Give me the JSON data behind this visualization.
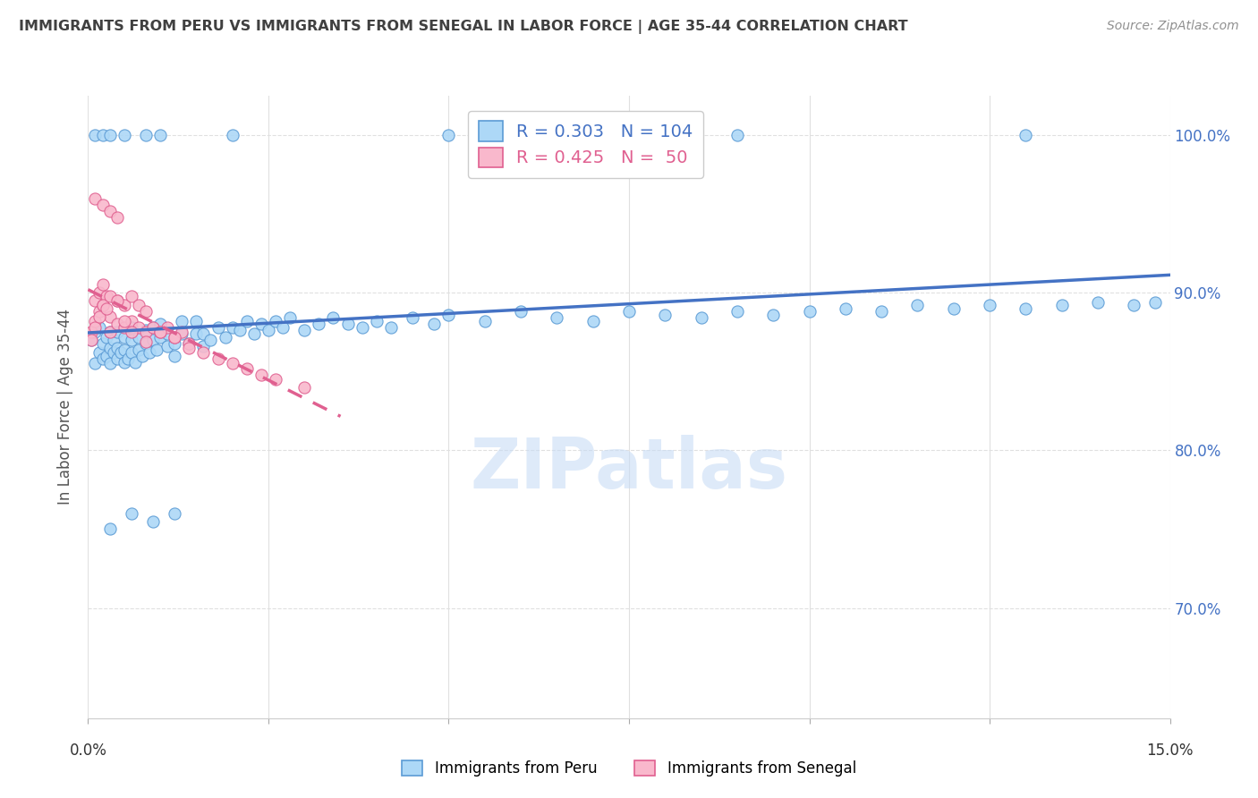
{
  "title": "IMMIGRANTS FROM PERU VS IMMIGRANTS FROM SENEGAL IN LABOR FORCE | AGE 35-44 CORRELATION CHART",
  "source": "Source: ZipAtlas.com",
  "ylabel": "In Labor Force | Age 35-44",
  "xmin": 0.0,
  "xmax": 0.15,
  "ymin": 0.63,
  "ymax": 1.025,
  "peru_R": 0.303,
  "peru_N": 104,
  "senegal_R": 0.425,
  "senegal_N": 50,
  "peru_color": "#ADD8F7",
  "senegal_color": "#F9B8CC",
  "peru_edge_color": "#5B9BD5",
  "senegal_edge_color": "#E06090",
  "peru_line_color": "#4472C4",
  "senegal_line_color": "#E06090",
  "watermark_color": "#C8DCF5",
  "grid_color": "#E0E0E0",
  "axis_label_color": "#4472C4",
  "title_color": "#404040",
  "source_color": "#909090",
  "ytick_vals": [
    0.7,
    0.8,
    0.9,
    1.0
  ],
  "ytick_labels": [
    "70.0%",
    "80.0%",
    "90.0%",
    "100.0%"
  ],
  "xtick_positions": [
    0.0,
    0.025,
    0.05,
    0.075,
    0.1,
    0.125,
    0.15
  ],
  "peru_x": [
    0.0005,
    0.001,
    0.001,
    0.0015,
    0.0015,
    0.002,
    0.002,
    0.0025,
    0.0025,
    0.003,
    0.003,
    0.003,
    0.0035,
    0.0035,
    0.004,
    0.004,
    0.004,
    0.0045,
    0.005,
    0.005,
    0.005,
    0.0055,
    0.006,
    0.006,
    0.006,
    0.0065,
    0.007,
    0.007,
    0.0075,
    0.008,
    0.008,
    0.0085,
    0.009,
    0.009,
    0.0095,
    0.01,
    0.01,
    0.011,
    0.011,
    0.012,
    0.012,
    0.013,
    0.013,
    0.014,
    0.015,
    0.015,
    0.016,
    0.016,
    0.017,
    0.018,
    0.019,
    0.02,
    0.021,
    0.022,
    0.023,
    0.024,
    0.025,
    0.026,
    0.027,
    0.028,
    0.03,
    0.032,
    0.034,
    0.036,
    0.038,
    0.04,
    0.042,
    0.045,
    0.048,
    0.05,
    0.055,
    0.06,
    0.065,
    0.07,
    0.075,
    0.08,
    0.085,
    0.09,
    0.095,
    0.1,
    0.105,
    0.11,
    0.115,
    0.12,
    0.125,
    0.13,
    0.135,
    0.14,
    0.145,
    0.148,
    0.001,
    0.002,
    0.003,
    0.005,
    0.008,
    0.01,
    0.02,
    0.05,
    0.09,
    0.13,
    0.003,
    0.006,
    0.009,
    0.012
  ],
  "peru_y": [
    0.87,
    0.875,
    0.855,
    0.862,
    0.878,
    0.858,
    0.868,
    0.86,
    0.872,
    0.855,
    0.865,
    0.875,
    0.862,
    0.87,
    0.858,
    0.865,
    0.875,
    0.862,
    0.856,
    0.864,
    0.872,
    0.858,
    0.862,
    0.87,
    0.878,
    0.856,
    0.864,
    0.872,
    0.86,
    0.868,
    0.876,
    0.862,
    0.87,
    0.878,
    0.864,
    0.872,
    0.88,
    0.866,
    0.874,
    0.86,
    0.868,
    0.874,
    0.882,
    0.868,
    0.874,
    0.882,
    0.866,
    0.874,
    0.87,
    0.878,
    0.872,
    0.878,
    0.876,
    0.882,
    0.874,
    0.88,
    0.876,
    0.882,
    0.878,
    0.884,
    0.876,
    0.88,
    0.884,
    0.88,
    0.878,
    0.882,
    0.878,
    0.884,
    0.88,
    0.886,
    0.882,
    0.888,
    0.884,
    0.882,
    0.888,
    0.886,
    0.884,
    0.888,
    0.886,
    0.888,
    0.89,
    0.888,
    0.892,
    0.89,
    0.892,
    0.89,
    0.892,
    0.894,
    0.892,
    0.894,
    1.0,
    1.0,
    1.0,
    1.0,
    1.0,
    1.0,
    1.0,
    1.0,
    1.0,
    1.0,
    0.75,
    0.76,
    0.755,
    0.76
  ],
  "senegal_x": [
    0.0005,
    0.001,
    0.001,
    0.0015,
    0.0015,
    0.002,
    0.002,
    0.0025,
    0.003,
    0.003,
    0.004,
    0.004,
    0.005,
    0.005,
    0.006,
    0.006,
    0.007,
    0.007,
    0.008,
    0.008,
    0.009,
    0.01,
    0.011,
    0.012,
    0.013,
    0.014,
    0.001,
    0.002,
    0.003,
    0.004,
    0.0005,
    0.001,
    0.0015,
    0.002,
    0.003,
    0.0025,
    0.004,
    0.005,
    0.006,
    0.008,
    0.01,
    0.012,
    0.014,
    0.016,
    0.018,
    0.02,
    0.022,
    0.024,
    0.026,
    0.03
  ],
  "senegal_y": [
    0.875,
    0.882,
    0.895,
    0.888,
    0.9,
    0.892,
    0.905,
    0.898,
    0.875,
    0.885,
    0.88,
    0.895,
    0.878,
    0.892,
    0.882,
    0.898,
    0.878,
    0.892,
    0.875,
    0.888,
    0.878,
    0.875,
    0.878,
    0.872,
    0.875,
    0.868,
    0.96,
    0.956,
    0.952,
    0.948,
    0.87,
    0.878,
    0.885,
    0.892,
    0.898,
    0.89,
    0.895,
    0.882,
    0.875,
    0.869,
    0.875,
    0.872,
    0.865,
    0.862,
    0.858,
    0.855,
    0.852,
    0.848,
    0.845,
    0.84
  ]
}
